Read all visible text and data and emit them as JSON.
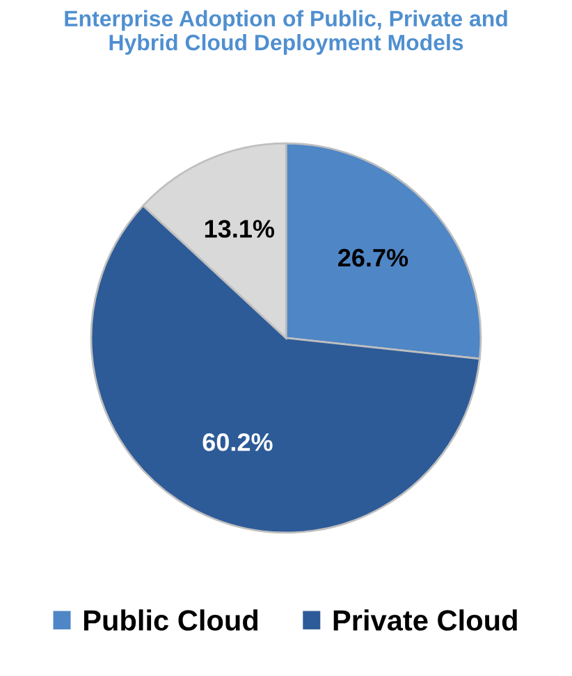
{
  "chart_data": {
    "type": "pie",
    "title": "Enterprise Adoption of Public, Private and\nHybrid Cloud Deployment Models",
    "categories": [
      "Public Cloud",
      "Private Cloud",
      null
    ],
    "values": [
      26.7,
      60.2,
      13.1
    ],
    "colors": [
      "#4f86c6",
      "#2d5b98",
      "#d9d9d9"
    ],
    "value_labels": [
      "26.7%",
      "60.2%",
      "13.1%"
    ],
    "legend": "bottom"
  }
}
